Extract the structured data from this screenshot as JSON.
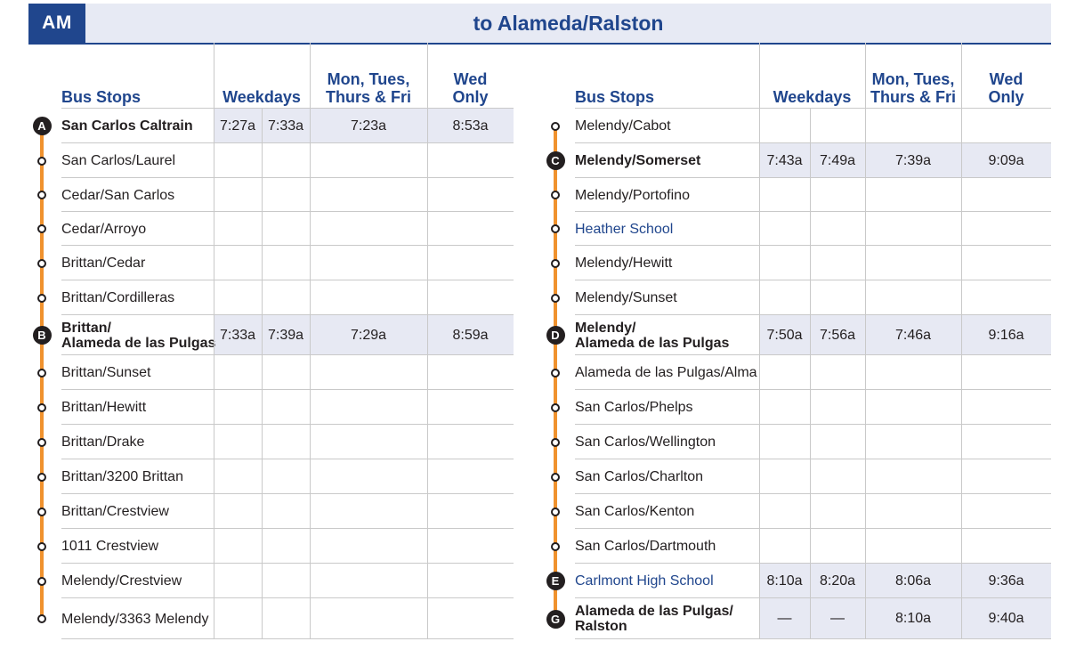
{
  "header": {
    "period": "AM",
    "direction": "to Alameda/Ralston"
  },
  "columns": {
    "stops": "Bus Stops",
    "weekdays": "Weekdays",
    "mon_fri": "Mon, Tues,\nThurs & Fri",
    "wed": "Wed\nOnly"
  },
  "tables": [
    {
      "rows": [
        {
          "name": "San Carlos Caltrain",
          "tp": "A",
          "style": "bold",
          "times": [
            "7:27a",
            "7:33a",
            "7:23a",
            "8:53a"
          ]
        },
        {
          "name": "San Carlos/Laurel"
        },
        {
          "name": "Cedar/San Carlos"
        },
        {
          "name": "Cedar/Arroyo"
        },
        {
          "name": "Brittan/Cedar"
        },
        {
          "name": "Brittan/Cordilleras"
        },
        {
          "name": "Brittan/\nAlameda de las Pulgas",
          "tp": "B",
          "style": "bold",
          "times": [
            "7:33a",
            "7:39a",
            "7:29a",
            "8:59a"
          ]
        },
        {
          "name": "Brittan/Sunset"
        },
        {
          "name": "Brittan/Hewitt"
        },
        {
          "name": "Brittan/Drake"
        },
        {
          "name": "Brittan/3200 Brittan"
        },
        {
          "name": "Brittan/Crestview"
        },
        {
          "name": "1011 Crestview"
        },
        {
          "name": "Melendy/Crestview"
        },
        {
          "name": "Melendy/3363 Melendy"
        }
      ]
    },
    {
      "rows": [
        {
          "name": "Melendy/Cabot"
        },
        {
          "name": "Melendy/Somerset",
          "tp": "C",
          "style": "bold",
          "times": [
            "7:43a",
            "7:49a",
            "7:39a",
            "9:09a"
          ]
        },
        {
          "name": "Melendy/Portofino"
        },
        {
          "name": "Heather School",
          "style": "blue"
        },
        {
          "name": "Melendy/Hewitt"
        },
        {
          "name": "Melendy/Sunset"
        },
        {
          "name": "Melendy/\nAlameda de las Pulgas",
          "tp": "D",
          "style": "bold",
          "times": [
            "7:50a",
            "7:56a",
            "7:46a",
            "9:16a"
          ]
        },
        {
          "name": "Alameda de las Pulgas/Alma"
        },
        {
          "name": "San Carlos/Phelps"
        },
        {
          "name": "San Carlos/Wellington"
        },
        {
          "name": "San Carlos/Charlton"
        },
        {
          "name": "San Carlos/Kenton"
        },
        {
          "name": "San Carlos/Dartmouth"
        },
        {
          "name": "Carlmont High School",
          "tp": "E",
          "style": "blue",
          "times": [
            "8:10a",
            "8:20a",
            "8:06a",
            "9:36a"
          ]
        },
        {
          "name": "Alameda de las Pulgas/\nRalston",
          "tp": "G",
          "style": "bold",
          "times": [
            "—",
            "—",
            "8:10a",
            "9:40a"
          ]
        }
      ]
    }
  ],
  "colors": {
    "accent": "#20468d",
    "route": "#f0922e",
    "shade": "#e7e9f3"
  }
}
